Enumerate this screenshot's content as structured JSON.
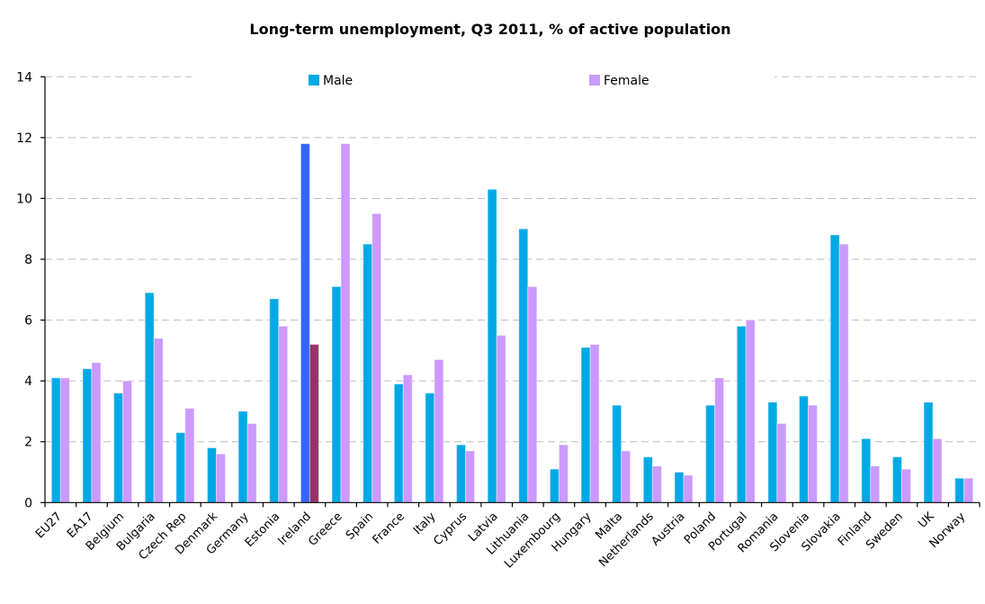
{
  "chart_data": {
    "type": "bar",
    "title": "Long-term unemployment, Q3 2011, % of active population",
    "xlabel": "",
    "ylabel": "",
    "ylim": [
      0,
      14
    ],
    "yticks": [
      0,
      2,
      4,
      6,
      8,
      10,
      12,
      14
    ],
    "grid": true,
    "legend_position": "top",
    "categories": [
      "EU27",
      "EA17",
      "Belgium",
      "Bulgaria",
      "Czech Rep",
      "Denmark",
      "Germany",
      "Estonia",
      "Ireland",
      "Greece",
      "Spain",
      "France",
      "Italy",
      "Cyprus",
      "Latvia",
      "Lithuania",
      "Luxembourg",
      "Hungary",
      "Malta",
      "Netherlands",
      "Austria",
      "Poland",
      "Portugal",
      "Romania",
      "Slovenia",
      "Slovakia",
      "Finland",
      "Sweden",
      "UK",
      "Norway"
    ],
    "series": [
      {
        "name": "Male",
        "color": "#00a9e6",
        "values": [
          4.1,
          4.4,
          3.6,
          6.9,
          2.3,
          1.8,
          3.0,
          6.7,
          11.8,
          7.1,
          8.5,
          3.9,
          3.6,
          1.9,
          10.3,
          9.0,
          1.1,
          5.1,
          3.2,
          1.5,
          1.0,
          3.2,
          5.8,
          3.3,
          3.5,
          8.8,
          2.1,
          1.5,
          3.3,
          0.8
        ]
      },
      {
        "name": "Female",
        "color": "#cc99ff",
        "values": [
          4.1,
          4.6,
          4.0,
          5.4,
          3.1,
          1.6,
          2.6,
          5.8,
          5.2,
          11.8,
          9.5,
          4.2,
          4.7,
          1.7,
          5.5,
          7.1,
          1.9,
          5.2,
          1.7,
          1.2,
          0.9,
          4.1,
          6.0,
          2.6,
          3.2,
          8.5,
          1.2,
          1.1,
          2.1,
          0.8
        ]
      }
    ],
    "highlight": {
      "category": "Ireland",
      "colors": {
        "Male": "#3366ff",
        "Female": "#993366"
      }
    }
  }
}
